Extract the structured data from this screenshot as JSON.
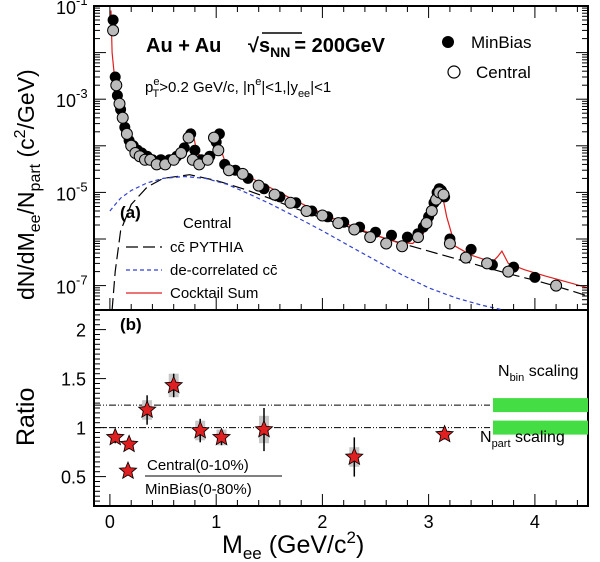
{
  "chart_data": [
    {
      "type": "scatter",
      "panel_label": "(a)",
      "title": "Au + Au",
      "energy_label": "√s",
      "energy_sub": "NN",
      "energy_value": "= 200GeV",
      "cuts_p": "p",
      "cuts_p_sup": "e",
      "cuts_p_sub": "T",
      "cuts_text": ">0.2 GeV/c, |η",
      "cuts_eta_sup": "e",
      "cuts_rest": "|<1,|y",
      "cuts_y_sub": "ee",
      "cuts_end": "|<1",
      "ylabel": "dN/dM",
      "ylabel_sub1": "ee",
      "ylabel_mid": "/N",
      "ylabel_sub2": "part",
      "ylabel_unit": " (c",
      "ylabel_unit_sup": "2",
      "ylabel_unit_end": "/GeV)",
      "yscale": "log",
      "ylim": [
        3e-08,
        0.1
      ],
      "xlim": [
        -0.15,
        4.5
      ],
      "y_ticks": [
        {
          "base": "10",
          "exp": "-1",
          "value": 0.1
        },
        {
          "base": "10",
          "exp": "-3",
          "value": 0.001
        },
        {
          "base": "10",
          "exp": "-5",
          "value": 1e-05
        },
        {
          "base": "10",
          "exp": "-7",
          "value": 1e-07
        }
      ],
      "legend_top": [
        {
          "label": "MinBias",
          "marker": "filled-circle"
        },
        {
          "label": "Central",
          "marker": "open-circle"
        }
      ],
      "legend_bottom_title": "Central",
      "legend_bottom": [
        {
          "label": "cc̄ PYTHIA",
          "style": "long-dash",
          "color": "#000000"
        },
        {
          "label": "de-correlated cc̄",
          "style": "short-dash",
          "color": "#3040d0"
        },
        {
          "label": "Cocktail Sum",
          "style": "solid",
          "color": "#e02020"
        }
      ],
      "series": [
        {
          "name": "MinBias",
          "marker": "filled-circle",
          "x": [
            0.03,
            0.05,
            0.07,
            0.1,
            0.14,
            0.18,
            0.22,
            0.26,
            0.3,
            0.35,
            0.4,
            0.48,
            0.56,
            0.63,
            0.7,
            0.76,
            0.8,
            0.86,
            0.94,
            1.0,
            1.03,
            1.08,
            1.18,
            1.3,
            1.45,
            1.6,
            1.75,
            1.9,
            2.05,
            2.2,
            2.35,
            2.5,
            2.65,
            2.8,
            2.9,
            2.95,
            3.0,
            3.05,
            3.08,
            3.1,
            3.12,
            3.15,
            3.2,
            3.4,
            3.6,
            3.8,
            4.0,
            4.2
          ],
          "y": [
            0.05,
            0.003,
            0.0012,
            0.0006,
            0.00025,
            0.00013,
            0.0001,
            8e-05,
            7e-05,
            6e-05,
            5e-05,
            5e-05,
            5e-05,
            6e-05,
            9e-05,
            0.00018,
            8e-05,
            5e-05,
            6e-05,
            0.00012,
            0.00018,
            4e-05,
            3e-05,
            2e-05,
            1.2e-05,
            8e-06,
            6e-06,
            4e-06,
            3e-06,
            2.3e-06,
            1.8e-06,
            1.4e-06,
            1.2e-06,
            1.1e-06,
            1.3e-06,
            1.8e-06,
            3e-06,
            6e-06,
            1e-05,
            1.2e-05,
            1.1e-05,
            8e-06,
            1e-06,
            6e-07,
            2.8e-07,
            2.5e-07,
            1.5e-07,
            1e-07
          ]
        },
        {
          "name": "Central",
          "marker": "open-circle",
          "x": [
            0.03,
            0.06,
            0.09,
            0.12,
            0.16,
            0.2,
            0.24,
            0.28,
            0.33,
            0.38,
            0.44,
            0.52,
            0.6,
            0.67,
            0.74,
            0.78,
            0.84,
            0.92,
            0.98,
            1.02,
            1.12,
            1.25,
            1.4,
            1.55,
            1.7,
            1.85,
            2.0,
            2.15,
            2.3,
            2.45,
            2.6,
            2.75,
            2.9,
            2.98,
            3.03,
            3.07,
            3.1,
            3.14,
            3.2,
            3.35,
            3.55,
            3.75,
            4.2
          ],
          "y": [
            0.03,
            0.002,
            0.0008,
            0.0004,
            0.00018,
            0.0001,
            7e-05,
            6e-05,
            5e-05,
            5e-05,
            4e-05,
            4e-05,
            5e-05,
            7e-05,
            0.00015,
            5e-05,
            4e-05,
            5e-05,
            0.00015,
            8e-05,
            3e-05,
            2.5e-05,
            1.4e-05,
            9e-06,
            6e-06,
            4e-06,
            3.2e-06,
            2.2e-06,
            1.6e-06,
            1.1e-06,
            8e-07,
            7e-07,
            1.1e-06,
            2.2e-06,
            4e-06,
            7e-06,
            1e-05,
            9e-06,
            8e-07,
            4e-07,
            3e-07,
            2e-07,
            1e-07
          ]
        }
      ],
      "curves": [
        {
          "name": "cc̄ PYTHIA",
          "style": "long-dash",
          "color": "#000000",
          "x": [
            0.02,
            0.05,
            0.1,
            0.2,
            0.35,
            0.5,
            0.75,
            1.0,
            1.25,
            1.5,
            1.75,
            2.0,
            2.25,
            2.5,
            2.75,
            3.0,
            3.25,
            3.5,
            3.75,
            4.0,
            4.25,
            4.5
          ],
          "y": [
            3e-08,
            2e-07,
            1.5e-06,
            5.5e-06,
            1.3e-05,
            2e-05,
            2.4e-05,
            1.8e-05,
            1.2e-05,
            7.5e-06,
            4.5e-06,
            2.8e-06,
            1.8e-06,
            1.2e-06,
            8e-07,
            5.5e-07,
            3.8e-07,
            2.6e-07,
            1.8e-07,
            1.3e-07,
            9e-08,
            6e-08
          ]
        },
        {
          "name": "de-correlated cc̄",
          "style": "short-dash",
          "color": "#3040d0",
          "x": [
            0.0,
            0.05,
            0.1,
            0.2,
            0.35,
            0.5,
            0.7,
            0.9,
            1.1,
            1.3,
            1.5,
            1.75,
            2.0,
            2.25,
            2.5,
            2.75,
            3.0,
            3.25,
            3.5,
            3.7
          ],
          "y": [
            4e-06,
            5.5e-06,
            7.5e-06,
            1.1e-05,
            1.6e-05,
            2e-05,
            2.2e-05,
            2e-05,
            1.5e-05,
            9.5e-06,
            5.8e-06,
            3e-06,
            1.5e-06,
            7.2e-07,
            3.5e-07,
            1.7e-07,
            9e-08,
            5.5e-08,
            3.8e-08,
            3e-08
          ]
        },
        {
          "name": "Cocktail Sum",
          "style": "solid",
          "color": "#e02020",
          "x": [
            0.01,
            0.02,
            0.04,
            0.06,
            0.1,
            0.15,
            0.2,
            0.3,
            0.4,
            0.5,
            0.6,
            0.65,
            0.7,
            0.75,
            0.77,
            0.79,
            0.82,
            0.9,
            0.96,
            1.0,
            1.02,
            1.04,
            1.1,
            1.3,
            1.5,
            1.7,
            1.9,
            2.1,
            2.3,
            2.5,
            2.7,
            2.85,
            2.95,
            3.0,
            3.05,
            3.09,
            3.1,
            3.12,
            3.17,
            3.25,
            3.4,
            3.6,
            3.65,
            3.69,
            3.75,
            3.9,
            4.1,
            4.3,
            4.5
          ],
          "y": [
            0.08,
            0.01,
            0.0035,
            0.0017,
            0.0006,
            0.00025,
            0.00013,
            6.5e-05,
            4.8e-05,
            4.2e-05,
            4.5e-05,
            5e-05,
            7e-05,
            0.00015,
            0.00022,
            0.00015,
            7e-05,
            5.2e-05,
            5.8e-05,
            0.0001,
            0.00022,
            9e-05,
            3.5e-05,
            2.2e-05,
            1.3e-05,
            7.5e-06,
            4.5e-06,
            2.8e-06,
            1.8e-06,
            1.2e-06,
            8.5e-07,
            8e-07,
            1.3e-06,
            2.8e-06,
            7e-06,
            1.2e-05,
            1.3e-05,
            1.1e-05,
            3e-06,
            7e-07,
            4.5e-07,
            3.2e-07,
            4.2e-07,
            5.5e-07,
            3e-07,
            2.2e-07,
            1.6e-07,
            1.2e-07,
            9e-08
          ]
        }
      ]
    },
    {
      "type": "scatter",
      "panel_label": "(b)",
      "ylabel": "Ratio",
      "xlabel": "M",
      "xlabel_sub": "ee",
      "xlabel_unit": " (GeV/c",
      "xlabel_unit_sup": "2",
      "xlabel_end": ")",
      "xlim": [
        -0.15,
        4.5
      ],
      "ylim": [
        0.2,
        2.2
      ],
      "x_ticks": [
        "0",
        "1",
        "2",
        "3",
        "4"
      ],
      "x_tick_values": [
        0,
        1,
        2,
        3,
        4
      ],
      "y_ticks": [
        "0.5",
        "1",
        "1.5",
        "2"
      ],
      "y_tick_values": [
        0.5,
        1,
        1.5,
        2
      ],
      "reference_lines": [
        1.0,
        1.23
      ],
      "bands": [
        {
          "label": "N",
          "label_sub": "bin",
          "label_end": " scaling",
          "y": 1.23
        },
        {
          "label": "N",
          "label_sub": "part",
          "label_end": " scaling",
          "y": 1.0
        }
      ],
      "band_color": "#44dd44",
      "legend_marker": "red-star",
      "legend_numerator": "Central(0-10%)",
      "legend_denominator": "MinBias(0-80%)",
      "series": [
        {
          "marker": "red-star",
          "color": "#e02020",
          "x": [
            0.05,
            0.18,
            0.35,
            0.6,
            0.85,
            1.05,
            1.45,
            2.3,
            3.15
          ],
          "y": [
            0.9,
            0.83,
            1.18,
            1.43,
            0.97,
            0.9,
            0.98,
            0.7,
            0.93
          ],
          "err": [
            0.06,
            0.05,
            0.15,
            0.12,
            0.12,
            0.08,
            0.22,
            0.2,
            0.05
          ],
          "sys": [
            0.04,
            0.04,
            0.1,
            0.12,
            0.1,
            0.08,
            0.14,
            0.1,
            0.04
          ]
        }
      ]
    }
  ]
}
